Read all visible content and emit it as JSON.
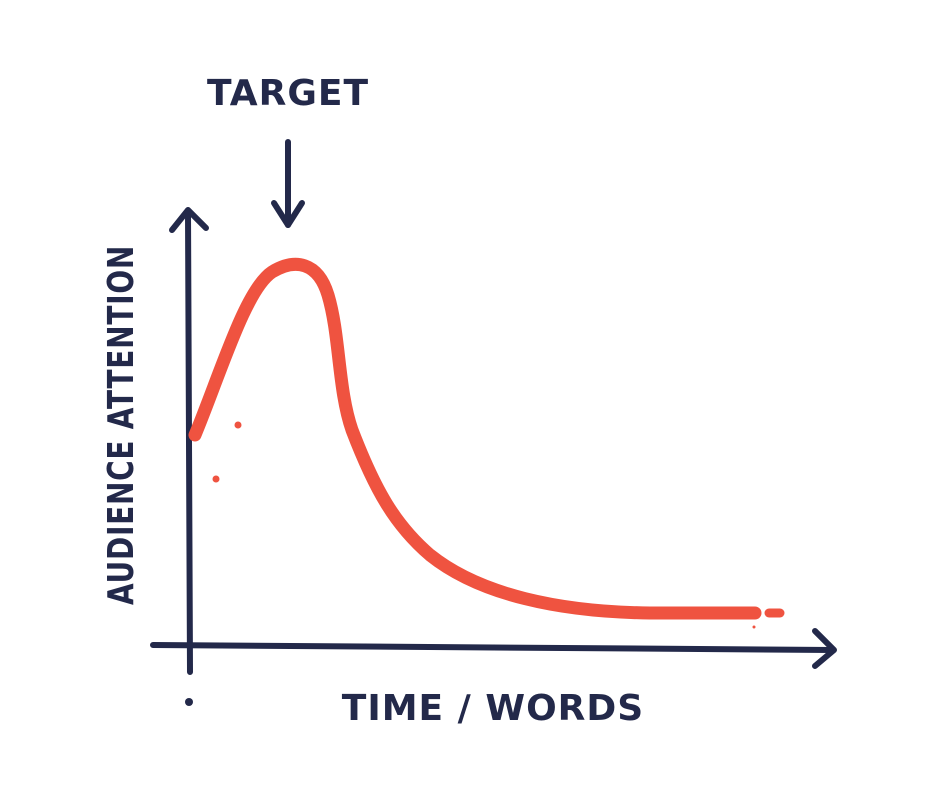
{
  "diagram": {
    "target_label": "TARGET",
    "x_axis_label": "TIME / WORDS",
    "y_axis_label": "AUDIENCE ATTENTION"
  },
  "colors": {
    "ink": "#23294a",
    "curve": "#ef5340",
    "background": "#ffffff"
  },
  "icons": {
    "target_marker": "down-arrow-icon",
    "y_axis_end": "arrowhead-up-icon",
    "x_axis_end": "arrowhead-right-icon"
  }
}
